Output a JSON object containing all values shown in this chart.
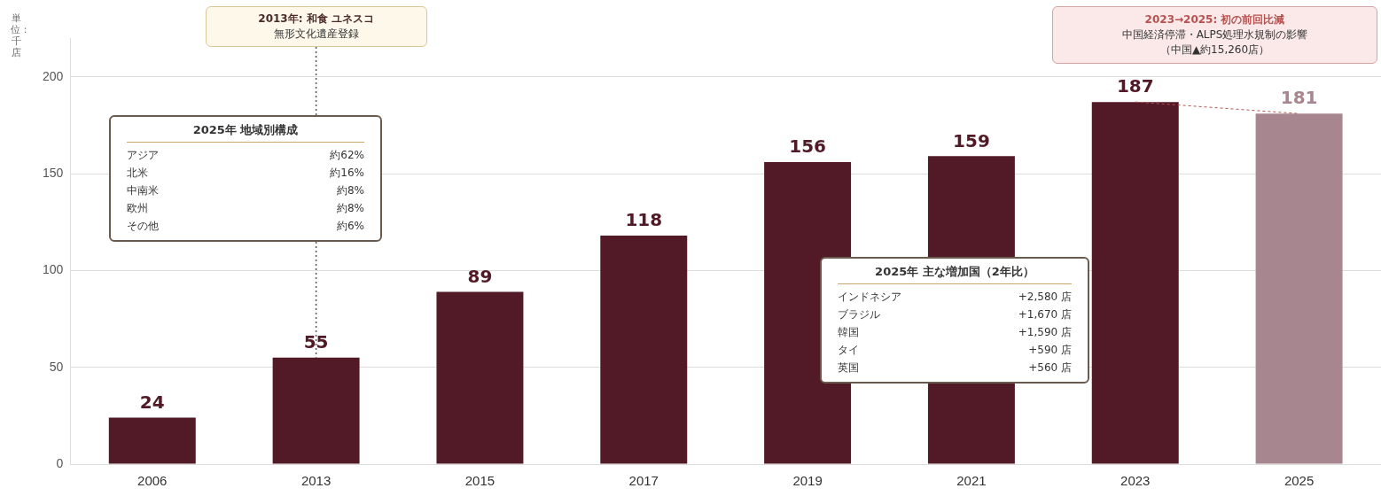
{
  "chart_data": {
    "type": "bar",
    "ylabel": "単位：千店",
    "categories": [
      "2006",
      "2013",
      "2015",
      "2017",
      "2019",
      "2021",
      "2023",
      "2025"
    ],
    "values": [
      24,
      55,
      89,
      118,
      156,
      159,
      187,
      181
    ],
    "colors": [
      "#521a27",
      "#521a27",
      "#521a27",
      "#521a27",
      "#521a27",
      "#521a27",
      "#521a27",
      "#a8868f"
    ],
    "ylim": [
      0,
      220
    ],
    "yticks": [
      0,
      50,
      100,
      150,
      200
    ],
    "grid": "y",
    "data_labels": true,
    "ref_lines": [
      {
        "axis": "x",
        "value": "2013",
        "label": "2013年: 和食 ユネスコ",
        "color": "#555555",
        "line_style": "dotted"
      }
    ],
    "annotations": [
      "無形文化遺産登録",
      "2023→2025: 初の前回比減",
      "中国経済停滞・ALPS処理水規制の影響",
      "（中国▲約15,260店）",
      "2025年 地域別構成",
      "アジア",
      "約62%",
      "北米",
      "約16%",
      "中南米",
      "約8%",
      "欧州",
      "約8%",
      "その他",
      "約6%",
      "2025年 主な増加国（2年比）",
      "インドネシア",
      "+2,580 店",
      "ブラジル",
      "+1,670 店",
      "韓国",
      "+1,590 店",
      "タイ",
      "+590 店",
      "英国",
      "+560 店"
    ]
  }
}
